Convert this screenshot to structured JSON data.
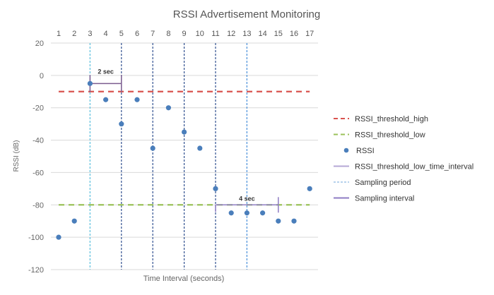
{
  "chart_data": {
    "type": "scatter",
    "title": "RSSI Advertisement Monitoring",
    "xlabel": "Time Interval (seconds)",
    "ylabel": "RSSI (dB)",
    "x_ticks": [
      1,
      2,
      3,
      4,
      5,
      6,
      7,
      8,
      9,
      10,
      11,
      12,
      13,
      14,
      15,
      16,
      17
    ],
    "x_axis_position": "top",
    "ylim": [
      -120,
      20
    ],
    "y_ticks": [
      20,
      0,
      -20,
      -40,
      -60,
      -80,
      -100,
      -120
    ],
    "grid": true,
    "legend_position": "right",
    "series": [
      {
        "name": "RSSI",
        "type": "scatter",
        "color": "#4a7ebb",
        "x": [
          1,
          2,
          3,
          4,
          5,
          6,
          7,
          8,
          9,
          10,
          11,
          12,
          13,
          14,
          15,
          16,
          17
        ],
        "y": [
          -100,
          -90,
          -5,
          -15,
          -30,
          -15,
          -45,
          -20,
          -35,
          -45,
          -70,
          -85,
          -85,
          -85,
          -90,
          -90,
          -70
        ]
      },
      {
        "name": "RSSI_threshold_high",
        "type": "hline",
        "y": -10,
        "color": "#d9534f"
      },
      {
        "name": "RSSI_threshold_low",
        "type": "hline",
        "y": -80,
        "color": "#9bc25a"
      }
    ],
    "legend": [
      {
        "label": "RSSI_threshold_high",
        "style": "dash",
        "color": "#d9534f"
      },
      {
        "label": "RSSI_threshold_low",
        "style": "dash",
        "color": "#9bc25a"
      },
      {
        "label": "RSSI",
        "style": "dot",
        "color": "#4a7ebb"
      },
      {
        "label": "RSSI_threshold_low_time_interval",
        "style": "line",
        "color": "#b4a7d6"
      },
      {
        "label": "Sampling period",
        "style": "dot-dash",
        "color": "#9dc3e6"
      },
      {
        "label": "Sampling interval",
        "style": "line",
        "color": "#8e7cc3"
      }
    ],
    "vertical_lines": [
      {
        "x": 3,
        "color": "#5bc0de"
      },
      {
        "x": 5,
        "color": "#2f4f8f"
      },
      {
        "x": 7,
        "color": "#2f4f8f"
      },
      {
        "x": 9,
        "color": "#2f4f8f"
      },
      {
        "x": 11,
        "color": "#2f4f8f"
      },
      {
        "x": 13,
        "color": "#4a90d9"
      }
    ],
    "annotations": [
      {
        "text": "2 sec",
        "x_start": 3,
        "x_end": 5,
        "y": -5,
        "color": "#7b5c8f"
      },
      {
        "text": "4 sec",
        "x_start": 11,
        "x_end": 15,
        "y": -80,
        "color": "#8e7cc3"
      }
    ]
  }
}
